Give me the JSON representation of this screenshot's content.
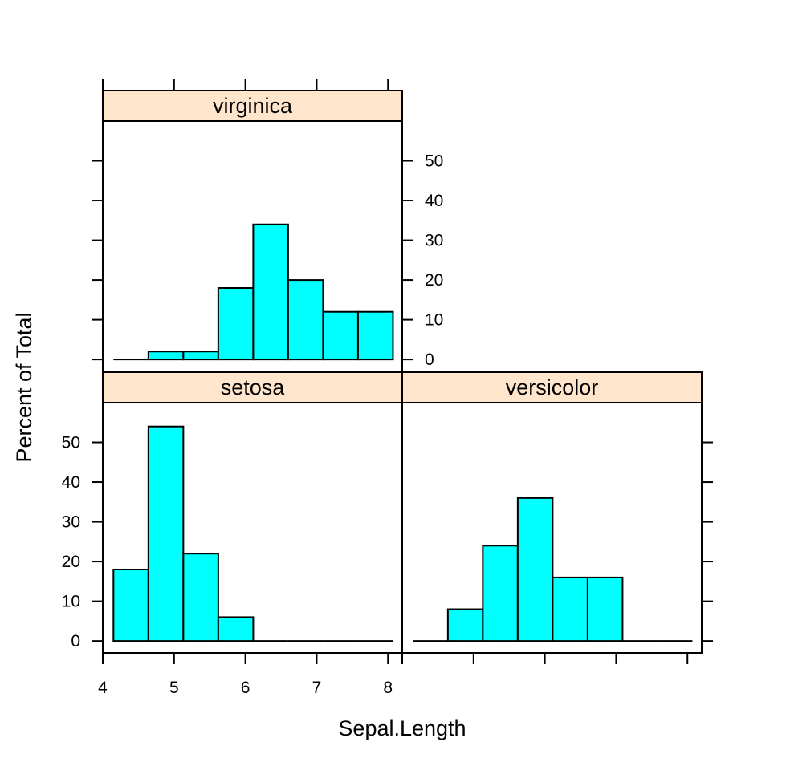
{
  "chart_data": {
    "type": "bar",
    "subtype": "histogram",
    "xlabel": "Sepal.Length",
    "ylabel": "Percent of Total",
    "xlim": [
      4.0,
      8.2
    ],
    "ylim": [
      -3,
      60
    ],
    "x_ticks": [
      4,
      5,
      6,
      7,
      8
    ],
    "y_ticks": [
      0,
      10,
      20,
      30,
      40,
      50
    ],
    "bin_edges": [
      4.15,
      4.64,
      5.13,
      5.62,
      6.11,
      6.6,
      7.09,
      7.58,
      8.07
    ],
    "bar_color": "#00FFFF",
    "strip_color": "#FFE5CC",
    "panels": [
      {
        "name": "setosa",
        "values": [
          18,
          54,
          22,
          6,
          0,
          0,
          0,
          0
        ]
      },
      {
        "name": "versicolor",
        "values": [
          0,
          8,
          24,
          36,
          16,
          16,
          0,
          0
        ]
      },
      {
        "name": "virginica",
        "values": [
          0,
          2,
          2,
          18,
          34,
          20,
          12,
          12
        ]
      }
    ]
  }
}
